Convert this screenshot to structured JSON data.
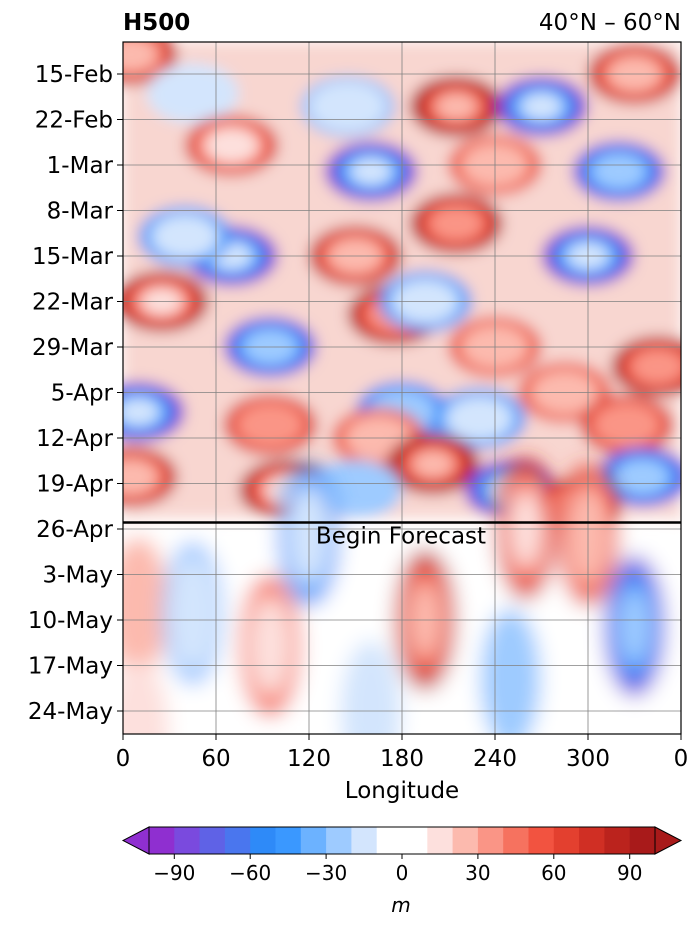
{
  "chart_data": {
    "type": "heatmap",
    "title_left": "H500",
    "title_right": "40°N – 60°N",
    "xlabel": "Longitude",
    "ylabel": "",
    "x_ticks": [
      "0",
      "60",
      "120",
      "180",
      "240",
      "300",
      "0"
    ],
    "x_tick_values": [
      0,
      60,
      120,
      180,
      240,
      300,
      360
    ],
    "xlim": [
      0,
      360
    ],
    "y_ticks": [
      "15-Feb",
      "22-Feb",
      "1-Mar",
      "8-Mar",
      "15-Mar",
      "22-Mar",
      "29-Mar",
      "5-Apr",
      "12-Apr",
      "19-Apr",
      "26-Apr",
      "3-May",
      "10-May",
      "17-May",
      "24-May"
    ],
    "forecast_line_date": "25-Apr",
    "forecast_label": "Begin Forecast",
    "grid": true,
    "colorbar": {
      "label": "m",
      "ticks": [
        "−90",
        "−60",
        "−30",
        "0",
        "30",
        "60",
        "90"
      ],
      "tick_values": [
        -90,
        -60,
        -30,
        0,
        30,
        60,
        90
      ],
      "levels": [
        -100,
        -90,
        -80,
        -70,
        -60,
        -50,
        -40,
        -30,
        -20,
        -10,
        0,
        10,
        20,
        30,
        40,
        50,
        60,
        70,
        80,
        90,
        100
      ],
      "colors": [
        "#8f2fd0",
        "#7a4ade",
        "#5f62e6",
        "#4a76ee",
        "#2e8af8",
        "#3a98ff",
        "#6cb2ff",
        "#9ecbff",
        "#d3e5fd",
        "#ffffff",
        "#ffffff",
        "#fde0dd",
        "#fcbaae",
        "#fa9586",
        "#f6725f",
        "#f25340",
        "#e3402f",
        "#d02f24",
        "#bb231d",
        "#a81a1a"
      ],
      "extend": "both"
    },
    "observed_features": [
      {
        "lon": 5,
        "date": "12-Feb",
        "value": 85
      },
      {
        "lon": 45,
        "date": "18-Feb",
        "value": -20
      },
      {
        "lon": 70,
        "date": "26-Feb",
        "value": 75
      },
      {
        "lon": 145,
        "date": "20-Feb",
        "value": -35
      },
      {
        "lon": 160,
        "date": "2-Mar",
        "value": -95
      },
      {
        "lon": 215,
        "date": "20-Feb",
        "value": 100
      },
      {
        "lon": 270,
        "date": "20-Feb",
        "value": -95
      },
      {
        "lon": 240,
        "date": "1-Mar",
        "value": 60
      },
      {
        "lon": 320,
        "date": "2-Mar",
        "value": -90
      },
      {
        "lon": 330,
        "date": "15-Feb",
        "value": 80
      },
      {
        "lon": 25,
        "date": "22-Mar",
        "value": 95
      },
      {
        "lon": 70,
        "date": "15-Mar",
        "value": -95
      },
      {
        "lon": 40,
        "date": "12-Mar",
        "value": -60
      },
      {
        "lon": 150,
        "date": "15-Mar",
        "value": 85
      },
      {
        "lon": 175,
        "date": "24-Mar",
        "value": 90
      },
      {
        "lon": 95,
        "date": "29-Mar",
        "value": -90
      },
      {
        "lon": 215,
        "date": "10-Mar",
        "value": 90
      },
      {
        "lon": 240,
        "date": "29-Mar",
        "value": 60
      },
      {
        "lon": 300,
        "date": "15-Mar",
        "value": -95
      },
      {
        "lon": 345,
        "date": "1-Apr",
        "value": 90
      },
      {
        "lon": 195,
        "date": "22-Mar",
        "value": -55
      },
      {
        "lon": 10,
        "date": "8-Apr",
        "value": -95
      },
      {
        "lon": 95,
        "date": "10-Apr",
        "value": 70
      },
      {
        "lon": 180,
        "date": "8-Apr",
        "value": -70
      },
      {
        "lon": 165,
        "date": "12-Apr",
        "value": 60
      },
      {
        "lon": 230,
        "date": "9-Apr",
        "value": -60
      },
      {
        "lon": 285,
        "date": "5-Apr",
        "value": 60
      },
      {
        "lon": 325,
        "date": "10-Apr",
        "value": 70
      },
      {
        "lon": 5,
        "date": "18-Apr",
        "value": 80
      },
      {
        "lon": 105,
        "date": "20-Apr",
        "value": 95
      },
      {
        "lon": 200,
        "date": "16-Apr",
        "value": 100
      },
      {
        "lon": 250,
        "date": "20-Apr",
        "value": -95
      },
      {
        "lon": 335,
        "date": "18-Apr",
        "value": -90
      },
      {
        "lon": 150,
        "date": "20-Apr",
        "value": -30
      },
      {
        "lon": 290,
        "date": "23-Apr",
        "value": 90
      }
    ],
    "forecast_features": [
      {
        "lon": 10,
        "date": "8-May",
        "value": 25
      },
      {
        "lon": 45,
        "date": "9-May",
        "value": -40
      },
      {
        "lon": 95,
        "date": "14-May",
        "value": 55
      },
      {
        "lon": 195,
        "date": "10-May",
        "value": 80
      },
      {
        "lon": 330,
        "date": "11-May",
        "value": -85
      },
      {
        "lon": 260,
        "date": "26-Apr",
        "value": 75
      },
      {
        "lon": 300,
        "date": "27-Apr",
        "value": 60
      },
      {
        "lon": 120,
        "date": "27-Apr",
        "value": -55
      },
      {
        "lon": 250,
        "date": "19-May",
        "value": -30
      },
      {
        "lon": 10,
        "date": "27-May",
        "value": 15
      },
      {
        "lon": 160,
        "date": "24-May",
        "value": -15
      }
    ]
  }
}
